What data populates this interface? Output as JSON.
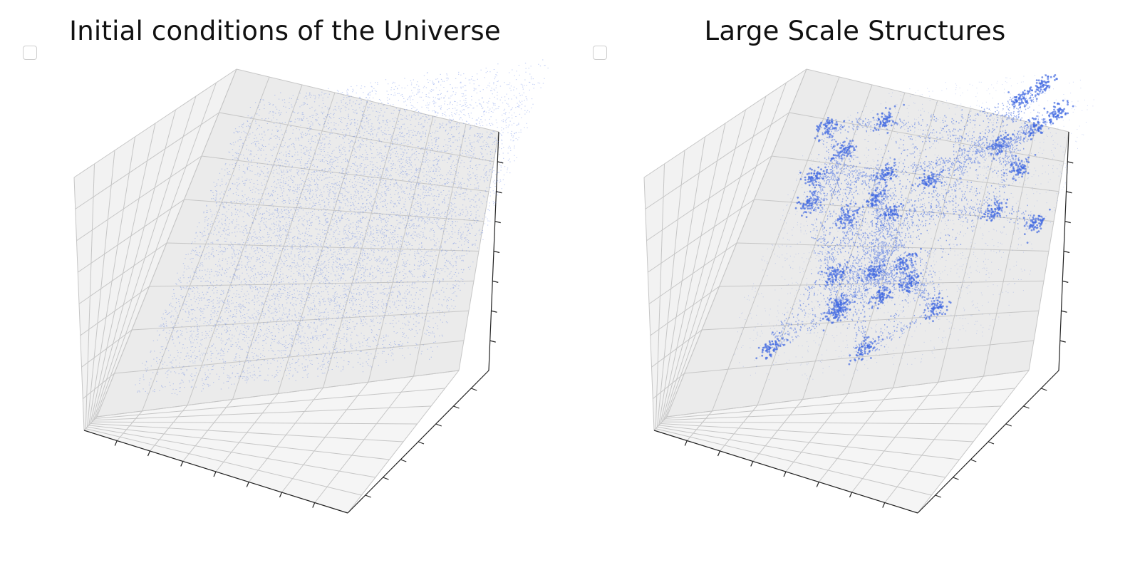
{
  "chart_data": [
    {
      "type": "scatter",
      "subtype": "3d-scatter",
      "title": "Initial conditions of the Universe",
      "distribution": "near-uniform diffuse cloud filling cube",
      "point_color": "#4169e1",
      "legend": {
        "placement": "top-left",
        "entries": []
      },
      "grid": true,
      "tick_labels": false
    },
    {
      "type": "scatter",
      "subtype": "3d-scatter",
      "title": "Large Scale Structures",
      "distribution": "clustered filaments and halos (cosmic web)",
      "point_color": "#4169e1",
      "legend": {
        "placement": "top-left",
        "entries": []
      },
      "grid": true,
      "tick_labels": false
    }
  ]
}
